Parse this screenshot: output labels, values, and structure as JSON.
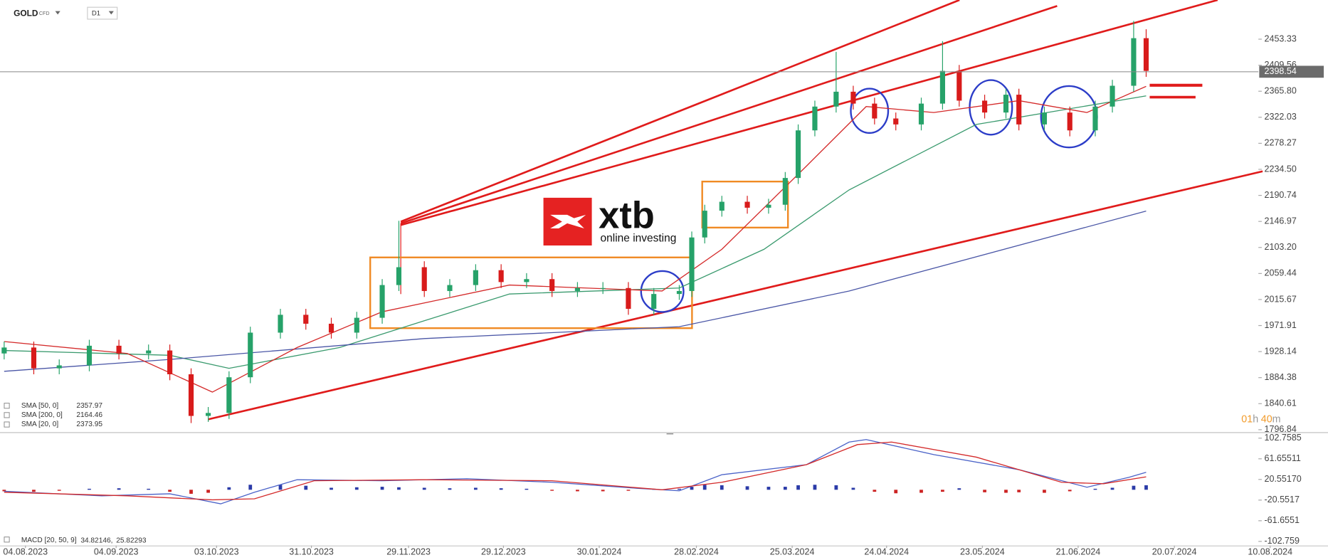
{
  "header": {
    "symbol": "GOLD",
    "instrument": "CFD",
    "interval": "D1"
  },
  "logo": {
    "name": "xtb",
    "tagline": "online investing"
  },
  "countdown": [
    "01",
    "h",
    "40",
    "m"
  ],
  "chart_data": [
    {
      "type": "candlestick",
      "up_color": "#26a269",
      "down_color": "#d81b1b",
      "xlim": [
        0,
        287
      ],
      "xticks": [
        {
          "value": 5.5,
          "label": "04.08.2023"
        },
        {
          "value": 25.1,
          "label": "04.09.2023"
        },
        {
          "value": 46.8,
          "label": "03.10.2023"
        },
        {
          "value": 67.3,
          "label": "31.10.2023"
        },
        {
          "value": 88.3,
          "label": "29.11.2023"
        },
        {
          "value": 108.8,
          "label": "29.12.2023"
        },
        {
          "value": 129.5,
          "label": "30.01.2024"
        },
        {
          "value": 150.5,
          "label": "28.02.2024"
        },
        {
          "value": 171.2,
          "label": "25.03.2024"
        },
        {
          "value": 191.6,
          "label": "24.04.2024"
        },
        {
          "value": 212.3,
          "label": "23.05.2024"
        },
        {
          "value": 233,
          "label": "21.06.2024"
        },
        {
          "value": 253.8,
          "label": "20.07.2024"
        },
        {
          "value": 274.5,
          "label": "10.08.2024"
        }
      ],
      "ylim": [
        1792,
        2512
      ],
      "yticks": [
        2453.33,
        2409.56,
        {
          "value": 2365.8,
          "label": "2365.80"
        },
        2322.03,
        2278.27,
        {
          "value": 2234.5,
          "label": "2234.50"
        },
        2190.74,
        2146.97,
        {
          "value": 2103.2,
          "label": "2103.20"
        },
        2059.44,
        2015.67,
        1971.91,
        1928.14,
        1884.38,
        1840.61,
        1796.84
      ],
      "last_price": 2398.54,
      "x": [
        0.9,
        7.3,
        12.8,
        19.3,
        25.7,
        32.1,
        36.7,
        41.3,
        45,
        49.5,
        54.1,
        60.6,
        66.1,
        71.6,
        77.1,
        82.6,
        86.2,
        91.7,
        97.2,
        102.8,
        108.3,
        113.8,
        119.3,
        124.8,
        130.3,
        135.8,
        141.3,
        146.8,
        149.5,
        152.3,
        156,
        161.5,
        166.1,
        169.7,
        172.5,
        176.1,
        180.7,
        184.4,
        189,
        193.6,
        199.1,
        203.7,
        207.3,
        212.8,
        217.4,
        220.2,
        225.7,
        231.2,
        236.7,
        240.4,
        245,
        247.7
      ],
      "open": [
        1925,
        1935,
        1900,
        1905,
        1938,
        1925,
        1930,
        1890,
        1820,
        1825,
        1885,
        1960,
        1990,
        1975,
        1960,
        1985,
        2040,
        2070,
        2030,
        2040,
        2065,
        2045,
        2050,
        2030,
        2035,
        2035,
        2000,
        2025,
        2030,
        2120,
        2165,
        2180,
        2170,
        2175,
        2220,
        2300,
        2340,
        2365,
        2345,
        2320,
        2310,
        2345,
        2400,
        2350,
        2330,
        2360,
        2310,
        2330,
        2300,
        2340,
        2375,
        2455
      ],
      "high": [
        1945,
        1945,
        1915,
        1948,
        1948,
        1940,
        1940,
        1900,
        1835,
        1895,
        1970,
        2000,
        2000,
        1985,
        1995,
        2050,
        2148,
        2080,
        2050,
        2075,
        2075,
        2060,
        2060,
        2045,
        2045,
        2045,
        2035,
        2040,
        2130,
        2175,
        2190,
        2190,
        2185,
        2230,
        2310,
        2350,
        2432,
        2375,
        2355,
        2330,
        2355,
        2450,
        2410,
        2360,
        2370,
        2370,
        2340,
        2340,
        2350,
        2385,
        2484,
        2470
      ],
      "low": [
        1915,
        1890,
        1890,
        1895,
        1915,
        1915,
        1880,
        1808,
        1810,
        1815,
        1875,
        1950,
        1965,
        1950,
        1950,
        1975,
        2030,
        2020,
        2020,
        2030,
        2035,
        2035,
        2020,
        2020,
        2025,
        1990,
        1990,
        2015,
        2020,
        2110,
        2155,
        2160,
        2160,
        2165,
        2210,
        2290,
        2330,
        2335,
        2310,
        2300,
        2300,
        2335,
        2340,
        2320,
        2320,
        2300,
        2300,
        2290,
        2290,
        2330,
        2365,
        2390
      ],
      "close": [
        1935,
        1900,
        1905,
        1938,
        1925,
        1930,
        1890,
        1820,
        1825,
        1885,
        1960,
        1990,
        1975,
        1960,
        1985,
        2040,
        2070,
        2030,
        2040,
        2065,
        2045,
        2050,
        2030,
        2035,
        2035,
        2000,
        2025,
        2030,
        2120,
        2165,
        2180,
        2170,
        2175,
        2220,
        2300,
        2340,
        2365,
        2345,
        2320,
        2310,
        2345,
        2400,
        2350,
        2330,
        2360,
        2310,
        2330,
        2300,
        2340,
        2375,
        2455,
        2400
      ],
      "overlays": [
        {
          "name": "SMA [50, 0]",
          "color": "#3a9a6e",
          "x": [
            0.9,
            36.7,
            49.5,
            73.4,
            91.7,
            110.1,
            146.8,
            165.1,
            183.5,
            211,
            247.7
          ],
          "values": [
            1930,
            1922,
            1900,
            1935,
            1980,
            2025,
            2035,
            2100,
            2200,
            2310,
            2357.97
          ]
        },
        {
          "name": "SMA [200, 0]",
          "color": "#4a56a6",
          "x": [
            0.9,
            36.7,
            91.7,
            146.8,
            183.5,
            247.7
          ],
          "values": [
            1895,
            1915,
            1950,
            1970,
            2030,
            2164.46
          ]
        },
        {
          "name": "SMA [20, 0]",
          "color": "#d42a2a",
          "x": [
            0.9,
            27.5,
            45.9,
            64.2,
            82.6,
            110.1,
            143.1,
            156,
            174.3,
            187.2,
            201.8,
            220.2,
            234.9,
            247.7
          ],
          "values": [
            1945,
            1925,
            1860,
            1935,
            1995,
            2040,
            2030,
            2100,
            2240,
            2340,
            2330,
            2350,
            2330,
            2373.95
          ]
        }
      ]
    },
    {
      "type": "macd",
      "legend": "MACD [20, 50, 9]",
      "legend_separator": ",",
      "xlim": [
        0,
        287
      ],
      "ylim": [
        -111,
        113
      ],
      "yticks": [
        102.7585,
        61.65511,
        {
          "value": 20.5517,
          "label": "20.55170"
        },
        -20.5517,
        -61.6551,
        -102.759
      ],
      "lines": [
        {
          "color": "#4a62c8",
          "x": [
            0.9,
            22,
            36.7,
            47.7,
            55,
            64.2,
            82.6,
            100.9,
            119.3,
            137.6,
            146.8,
            156,
            174.3,
            183.5,
            187.2,
            201.8,
            220.2,
            234.9,
            244,
            247.7
          ],
          "values": [
            -3,
            -12,
            -8,
            -28,
            -5,
            20,
            18,
            22,
            15,
            3,
            -2,
            30,
            50,
            95,
            100,
            70,
            40,
            5,
            25,
            34.82146
          ]
        },
        {
          "color": "#d42a2a",
          "x": [
            0.9,
            27.5,
            45.9,
            55,
            67.9,
            91.7,
            119.3,
            143.1,
            156,
            174.3,
            185.3,
            192.7,
            211,
            229.4,
            238.5,
            247.7
          ],
          "values": [
            -5,
            -12,
            -20,
            -18,
            18,
            20,
            18,
            0,
            15,
            50,
            90,
            95,
            65,
            15,
            12,
            25.82293
          ]
        }
      ],
      "histogram": {
        "up_color": "#2b3ba8",
        "down_color": "#cc2222",
        "x": [
          0.9,
          7.3,
          12.8,
          19.3,
          25.7,
          32.1,
          36.7,
          41.3,
          45,
          49.5,
          54.1,
          60.6,
          66.1,
          71.6,
          77.1,
          82.6,
          86.2,
          91.7,
          97.2,
          102.8,
          108.3,
          113.8,
          119.3,
          124.8,
          130.3,
          135.8,
          141.3,
          146.8,
          149.5,
          152.3,
          156,
          161.5,
          166.1,
          169.7,
          172.5,
          176.1,
          180.7,
          184.4,
          189,
          193.6,
          199.1,
          203.7,
          207.3,
          212.8,
          217.4,
          220.2,
          225.7,
          231.2,
          236.7,
          240.4,
          245,
          247.7
        ],
        "values": [
          -3,
          -4,
          -2,
          2,
          3,
          2,
          -4,
          -8,
          -6,
          5,
          10,
          10,
          8,
          4,
          5,
          6,
          5,
          4,
          3,
          4,
          3,
          2,
          -2,
          -3,
          -3,
          -2,
          2,
          2,
          6,
          10,
          9,
          7,
          6,
          6,
          9,
          10,
          9,
          4,
          -4,
          -7,
          -6,
          -4,
          3,
          -5,
          -6,
          -5,
          -6,
          -3,
          2,
          4,
          8,
          9
        ]
      }
    }
  ]
}
